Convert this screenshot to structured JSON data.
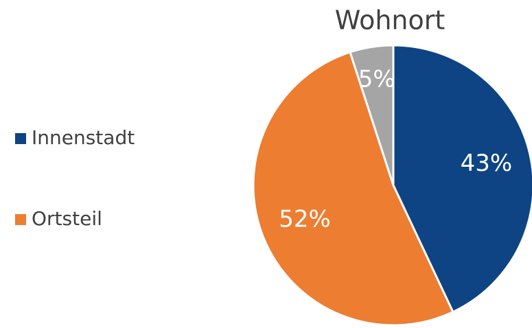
{
  "chart_data": {
    "type": "pie",
    "title": "Wohnort",
    "categories": [
      "Innenstadt",
      "Ortsteil",
      null
    ],
    "values": [
      43,
      52,
      5
    ],
    "value_labels": [
      "43%",
      "52%",
      "5%"
    ],
    "colors": [
      "#0e4483",
      "#ed7d31",
      "#a5a5a5"
    ],
    "legend": "left"
  }
}
